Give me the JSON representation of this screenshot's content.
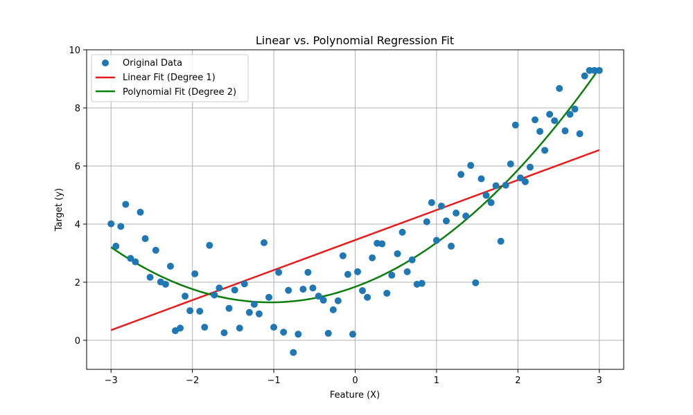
{
  "chart_data": {
    "type": "scatter",
    "title": "Linear vs. Polynomial Regression Fit",
    "xlabel": "Feature (X)",
    "ylabel": "Target (y)",
    "xlim": [
      -3.3,
      3.3
    ],
    "ylim": [
      -1.0,
      10.0
    ],
    "xticks": [
      -3,
      -2,
      -1,
      0,
      1,
      2,
      3
    ],
    "xtick_labels": [
      "−3",
      "−2",
      "−1",
      "0",
      "1",
      "2",
      "3"
    ],
    "yticks": [
      0,
      2,
      4,
      6,
      8,
      10
    ],
    "ytick_labels": [
      "0",
      "2",
      "4",
      "6",
      "8",
      "10"
    ],
    "grid": true,
    "legend_position": "top-left",
    "colors": {
      "scatter": "#1f77b4",
      "linear": "#e81c1c",
      "poly": "#0a7d0a"
    },
    "series": [
      {
        "name": "Original Data",
        "kind": "scatter",
        "points": [
          [
            -3.0,
            4.01
          ],
          [
            -2.94,
            3.24
          ],
          [
            -2.88,
            3.92
          ],
          [
            -2.82,
            4.68
          ],
          [
            -2.76,
            2.82
          ],
          [
            -2.7,
            2.7
          ],
          [
            -2.64,
            4.41
          ],
          [
            -2.58,
            3.5
          ],
          [
            -2.52,
            2.17
          ],
          [
            -2.45,
            3.1
          ],
          [
            -2.39,
            2.01
          ],
          [
            -2.33,
            1.93
          ],
          [
            -2.27,
            2.55
          ],
          [
            -2.21,
            0.33
          ],
          [
            -2.15,
            0.42
          ],
          [
            -2.09,
            1.52
          ],
          [
            -2.03,
            1.02
          ],
          [
            -1.97,
            2.29
          ],
          [
            -1.91,
            1.0
          ],
          [
            -1.85,
            0.45
          ],
          [
            -1.79,
            3.27
          ],
          [
            -1.73,
            1.56
          ],
          [
            -1.67,
            1.8
          ],
          [
            -1.61,
            0.26
          ],
          [
            -1.55,
            1.1
          ],
          [
            -1.48,
            1.73
          ],
          [
            -1.42,
            0.42
          ],
          [
            -1.36,
            1.94
          ],
          [
            -1.3,
            0.96
          ],
          [
            -1.24,
            1.24
          ],
          [
            -1.18,
            0.91
          ],
          [
            -1.12,
            3.36
          ],
          [
            -1.06,
            1.48
          ],
          [
            -1.0,
            0.45
          ],
          [
            -0.94,
            2.34
          ],
          [
            -0.88,
            0.28
          ],
          [
            -0.82,
            1.72
          ],
          [
            -0.76,
            -0.42
          ],
          [
            -0.7,
            0.21
          ],
          [
            -0.64,
            1.76
          ],
          [
            -0.58,
            2.34
          ],
          [
            -0.52,
            1.8
          ],
          [
            -0.45,
            1.52
          ],
          [
            -0.39,
            1.38
          ],
          [
            -0.33,
            0.24
          ],
          [
            -0.27,
            1.05
          ],
          [
            -0.21,
            1.36
          ],
          [
            -0.15,
            2.91
          ],
          [
            -0.09,
            2.27
          ],
          [
            -0.03,
            0.21
          ],
          [
            0.03,
            2.36
          ],
          [
            0.09,
            1.71
          ],
          [
            0.15,
            1.48
          ],
          [
            0.21,
            2.84
          ],
          [
            0.27,
            3.34
          ],
          [
            0.33,
            3.32
          ],
          [
            0.39,
            1.62
          ],
          [
            0.45,
            2.24
          ],
          [
            0.52,
            2.98
          ],
          [
            0.58,
            3.72
          ],
          [
            0.64,
            2.36
          ],
          [
            0.7,
            2.77
          ],
          [
            0.76,
            1.93
          ],
          [
            0.82,
            1.96
          ],
          [
            0.88,
            4.08
          ],
          [
            0.94,
            4.74
          ],
          [
            1.0,
            3.44
          ],
          [
            1.06,
            4.62
          ],
          [
            1.12,
            4.11
          ],
          [
            1.18,
            3.24
          ],
          [
            1.24,
            4.38
          ],
          [
            1.3,
            5.71
          ],
          [
            1.36,
            4.28
          ],
          [
            1.42,
            6.02
          ],
          [
            1.48,
            1.98
          ],
          [
            1.55,
            5.56
          ],
          [
            1.61,
            4.99
          ],
          [
            1.67,
            4.74
          ],
          [
            1.73,
            5.32
          ],
          [
            1.79,
            3.41
          ],
          [
            1.85,
            5.34
          ],
          [
            1.91,
            6.07
          ],
          [
            1.97,
            7.41
          ],
          [
            2.03,
            5.59
          ],
          [
            2.09,
            5.46
          ],
          [
            2.15,
            5.96
          ],
          [
            2.21,
            7.59
          ],
          [
            2.27,
            7.19
          ],
          [
            2.33,
            6.54
          ],
          [
            2.39,
            7.78
          ],
          [
            2.45,
            7.56
          ],
          [
            2.51,
            8.67
          ],
          [
            2.58,
            7.21
          ],
          [
            2.64,
            7.78
          ],
          [
            2.7,
            7.96
          ],
          [
            2.76,
            7.11
          ],
          [
            2.82,
            9.1
          ],
          [
            2.88,
            9.29
          ],
          [
            2.94,
            9.29
          ],
          [
            3.0,
            9.29
          ]
        ]
      },
      {
        "name": "Linear Fit (Degree 1)",
        "kind": "line",
        "equation": "y = 3.45 + 1.0333x",
        "x_range": [
          -3,
          3
        ],
        "endpoints": [
          [
            -3,
            0.35
          ],
          [
            3,
            6.55
          ]
        ]
      },
      {
        "name": "Polynomial Fit (Degree 2)",
        "kind": "line",
        "equation": "y = 1.84 + 1.026x + 0.4936x^2",
        "x_range": [
          -3,
          3
        ]
      }
    ]
  }
}
